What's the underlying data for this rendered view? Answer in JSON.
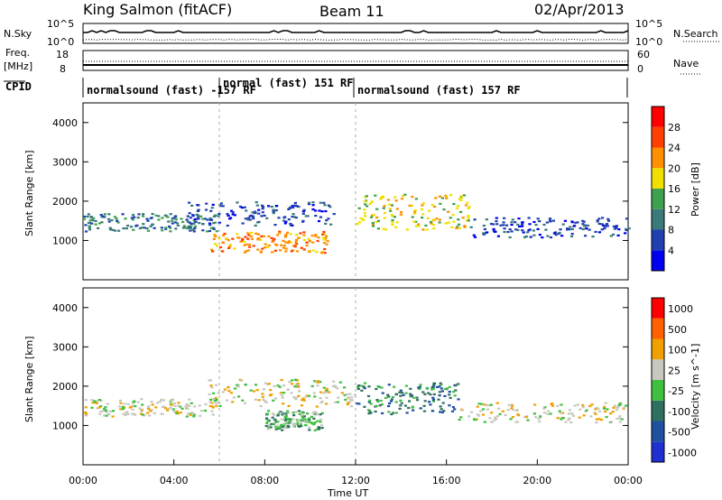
{
  "header": {
    "station": "King Salmon (fitACF)",
    "beam": "Beam 11",
    "date": "02/Apr/2013"
  },
  "noise_panel": {
    "left_label": "N.Sky",
    "right_label": "N.Search",
    "left_ticks": [
      "10^5",
      "10^0"
    ],
    "right_ticks": [
      "10^5",
      "10^0"
    ]
  },
  "freq_panel": {
    "left_label_top": "Freq.",
    "left_label_unit": "[MHz]",
    "right_label": "Nave",
    "left_ticks": [
      "18",
      "8"
    ],
    "right_ticks": [
      "60",
      "0"
    ]
  },
  "cpid_panel": {
    "label": "CPID",
    "segments": [
      {
        "text": "normalsound (fast) -157 RF",
        "start_hr": 0,
        "end_hr": 6
      },
      {
        "text": "normal (fast) 151 RF",
        "start_hr": 6,
        "end_hr": 12
      },
      {
        "text": "normalsound (fast) 157 RF",
        "start_hr": 12,
        "end_hr": 24
      }
    ]
  },
  "chart_data": [
    {
      "type": "heatmap",
      "title": "",
      "quantity": "Power",
      "ylabel": "Slant Range [km]",
      "xlabel": "Time UT",
      "xlim": [
        0,
        24
      ],
      "ylim": [
        0,
        4500
      ],
      "yticks": [
        "1000",
        "2000",
        "3000",
        "4000"
      ],
      "colorbar_label": "Power [dB]",
      "colorbar_ticks": [
        "4",
        "8",
        "12",
        "16",
        "20",
        "24",
        "28"
      ],
      "colors": [
        "#0000ee",
        "#2040b0",
        "#3a7a7a",
        "#3fa050",
        "#f0e000",
        "#ff9000",
        "#ff4000",
        "#ff0000"
      ],
      "regions": [
        {
          "x0": 0,
          "x1": 6,
          "y0": 1250,
          "y1": 1700,
          "level": 2
        },
        {
          "x0": 4.5,
          "x1": 11,
          "y0": 1400,
          "y1": 2000,
          "level": 1
        },
        {
          "x0": 5.5,
          "x1": 10.8,
          "y0": 700,
          "y1": 1250,
          "level": 5
        },
        {
          "x0": 12,
          "x1": 17,
          "y0": 1300,
          "y1": 2200,
          "level": 4
        },
        {
          "x0": 17,
          "x1": 24,
          "y0": 1100,
          "y1": 1600,
          "level": 1
        }
      ]
    },
    {
      "type": "heatmap",
      "title": "",
      "quantity": "Velocity",
      "ylabel": "Slant Range [km]",
      "xlabel": "Time UT",
      "xlim": [
        0,
        24
      ],
      "ylim": [
        0,
        4500
      ],
      "yticks": [
        "1000",
        "2000",
        "3000",
        "4000"
      ],
      "colorbar_label": "Velocity [m s^-1]",
      "colorbar_ticks": [
        "1000",
        "500",
        "100",
        "25",
        "-25",
        "-100",
        "-500",
        "-1000"
      ],
      "colors": [
        "#2030d0",
        "#2050a0",
        "#307060",
        "#40c040",
        "#c8c8c0",
        "#f0a000",
        "#ff6000",
        "#ff0000"
      ],
      "regions": [
        {
          "x0": 0,
          "x1": 6,
          "y0": 1250,
          "y1": 1700,
          "level": 4
        },
        {
          "x0": 5.5,
          "x1": 12,
          "y0": 1500,
          "y1": 2200,
          "level": 4
        },
        {
          "x0": 8,
          "x1": 10.5,
          "y0": 900,
          "y1": 1400,
          "level": 3
        },
        {
          "x0": 12,
          "x1": 16.5,
          "y0": 1300,
          "y1": 2100,
          "level": 2
        },
        {
          "x0": 16.5,
          "x1": 24,
          "y0": 1100,
          "y1": 1600,
          "level": 4
        }
      ]
    }
  ],
  "x_axis": {
    "label": "Time UT",
    "ticks": [
      "00:00",
      "04:00",
      "08:00",
      "12:00",
      "16:00",
      "20:00",
      "00:00"
    ]
  }
}
